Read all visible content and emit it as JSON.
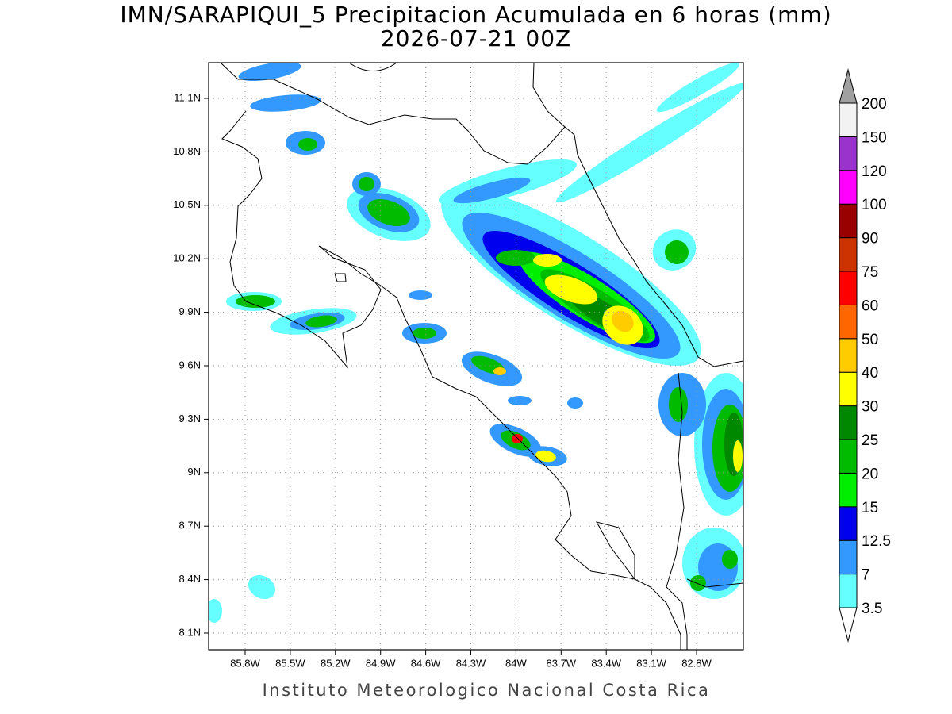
{
  "header": {
    "title": "IMN/SARAPIQUI_5 Precipitacion Acumulada en 6 horas (mm)",
    "subtitle": "2026-07-21 00Z"
  },
  "map": {
    "x_ticks": [
      {
        "value": -85.8,
        "label": "85.8W"
      },
      {
        "value": -85.5,
        "label": "85.5W"
      },
      {
        "value": -85.2,
        "label": "85.2W"
      },
      {
        "value": -84.9,
        "label": "84.9W"
      },
      {
        "value": -84.6,
        "label": "84.6W"
      },
      {
        "value": -84.3,
        "label": "84.3W"
      },
      {
        "value": -84.0,
        "label": "84W"
      },
      {
        "value": -83.7,
        "label": "83.7W"
      },
      {
        "value": -83.4,
        "label": "83.4W"
      },
      {
        "value": -83.1,
        "label": "83.1W"
      },
      {
        "value": -82.8,
        "label": "82.8W"
      }
    ],
    "y_ticks": [
      {
        "value": 11.1,
        "label": "11.1N"
      },
      {
        "value": 10.8,
        "label": "10.8N"
      },
      {
        "value": 10.5,
        "label": "10.5N"
      },
      {
        "value": 10.2,
        "label": "10.2N"
      },
      {
        "value": 9.9,
        "label": "9.9N"
      },
      {
        "value": 9.6,
        "label": "9.6N"
      },
      {
        "value": 9.3,
        "label": "9.3N"
      },
      {
        "value": 9.0,
        "label": "9N"
      },
      {
        "value": 8.7,
        "label": "8.7N"
      },
      {
        "value": 8.4,
        "label": "8.4N"
      },
      {
        "value": 8.1,
        "label": "8.1N"
      }
    ]
  },
  "colorbar": {
    "levels": [
      3.5,
      7,
      12.5,
      15,
      20,
      25,
      30,
      40,
      50,
      60,
      75,
      90,
      100,
      120,
      150,
      200
    ],
    "colors": [
      "#66ffff",
      "#3399ff",
      "#0000ee",
      "#00ee00",
      "#00bb00",
      "#008800",
      "#ffff00",
      "#ffcc00",
      "#ff6600",
      "#ff0000",
      "#cc3300",
      "#990000",
      "#ff00ff",
      "#9933cc",
      "#f2f2f2"
    ],
    "over_color": "#a0a0a0",
    "under_color": "#ffffff"
  },
  "footer": "Instituto Meteorologico Nacional Costa Rica"
}
